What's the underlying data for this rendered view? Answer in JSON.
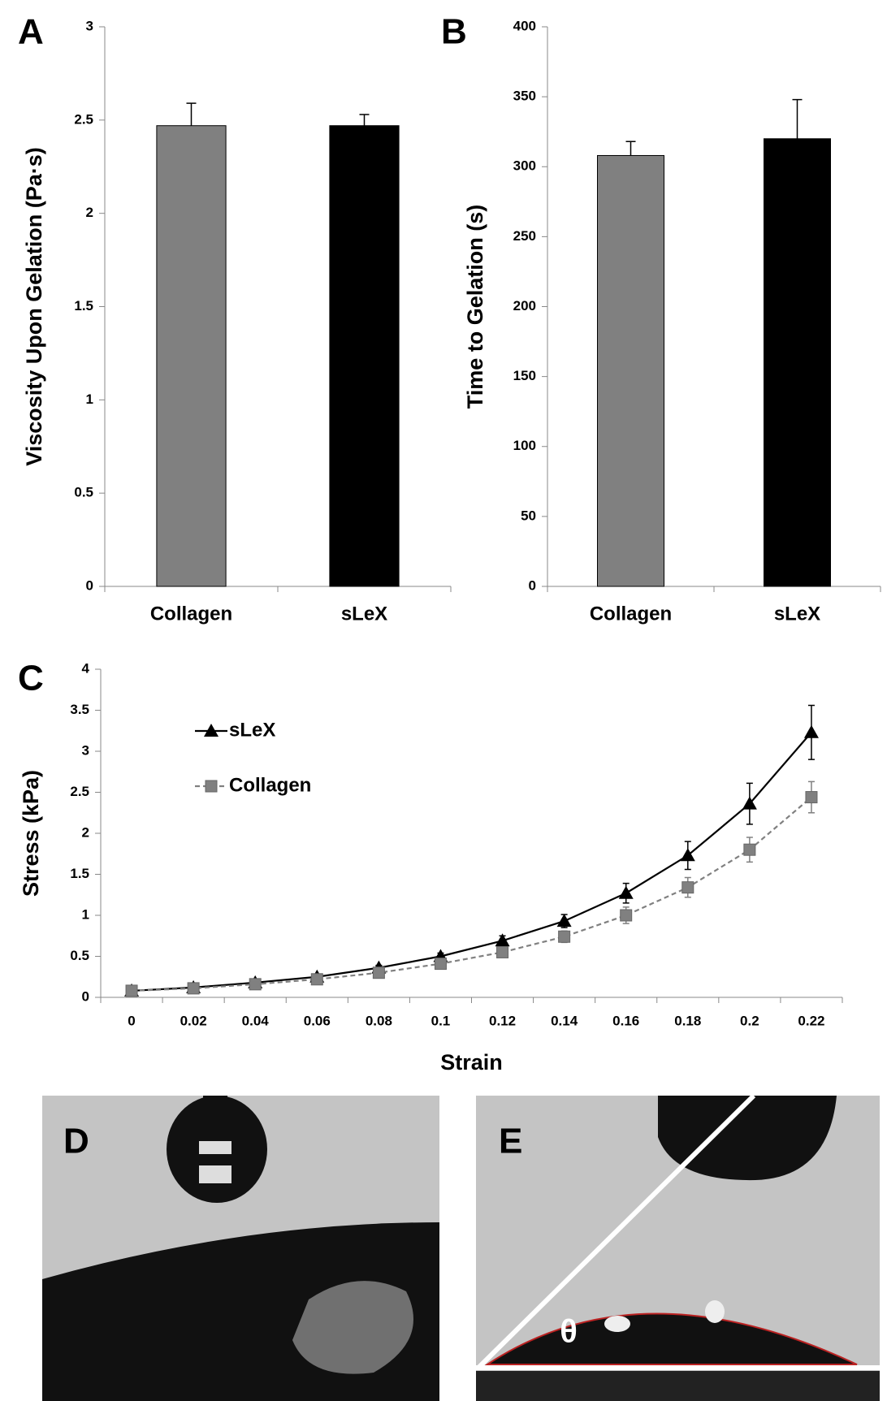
{
  "chart_data": [
    {
      "type": "bar",
      "panel": "A",
      "y_label": "Viscosity Upon Gelation (Pa·s)",
      "categories": [
        "Collagen",
        "sLeX"
      ],
      "values": [
        2.47,
        2.47
      ],
      "errors": [
        0.12,
        0.06
      ],
      "colors": [
        "#808080",
        "#000000"
      ],
      "ylim": [
        0,
        3
      ],
      "yticks": [
        0,
        0.5,
        1,
        1.5,
        2,
        2.5,
        3
      ]
    },
    {
      "type": "bar",
      "panel": "B",
      "y_label": "Time to Gelation (s)",
      "categories": [
        "Collagen",
        "sLeX"
      ],
      "values": [
        308,
        320
      ],
      "errors": [
        10,
        28
      ],
      "colors": [
        "#808080",
        "#000000"
      ],
      "ylim": [
        0,
        400
      ],
      "yticks": [
        0,
        50,
        100,
        150,
        200,
        250,
        300,
        350,
        400
      ]
    },
    {
      "type": "line",
      "panel": "C",
      "x_label": "Strain",
      "y_label": "Stress (kPa)",
      "categories": [
        "0",
        "0.02",
        "0.04",
        "0.06",
        "0.08",
        "0.1",
        "0.12",
        "0.14",
        "0.16",
        "0.18",
        "0.2",
        "0.22"
      ],
      "series": [
        {
          "name": "sLeX",
          "color": "#000000",
          "marker": "triangle",
          "dashed": false,
          "values": [
            0.08,
            0.12,
            0.18,
            0.25,
            0.36,
            0.5,
            0.69,
            0.93,
            1.27,
            1.73,
            2.36,
            3.23
          ],
          "errors": [
            0.01,
            0.01,
            0.02,
            0.03,
            0.03,
            0.04,
            0.06,
            0.08,
            0.12,
            0.17,
            0.25,
            0.33
          ]
        },
        {
          "name": "Collagen",
          "color": "#808080",
          "marker": "square",
          "dashed": true,
          "values": [
            0.08,
            0.11,
            0.16,
            0.22,
            0.3,
            0.41,
            0.55,
            0.74,
            1.0,
            1.34,
            1.8,
            2.44
          ],
          "errors": [
            0.01,
            0.01,
            0.02,
            0.02,
            0.03,
            0.04,
            0.05,
            0.07,
            0.1,
            0.12,
            0.15,
            0.19
          ]
        }
      ],
      "ylim": [
        0,
        4
      ],
      "yticks": [
        0,
        0.5,
        1,
        1.5,
        2,
        2.5,
        3,
        3.5,
        4
      ]
    }
  ],
  "photos": [
    {
      "label": "D"
    },
    {
      "label": "E",
      "symbol": "θ"
    }
  ]
}
